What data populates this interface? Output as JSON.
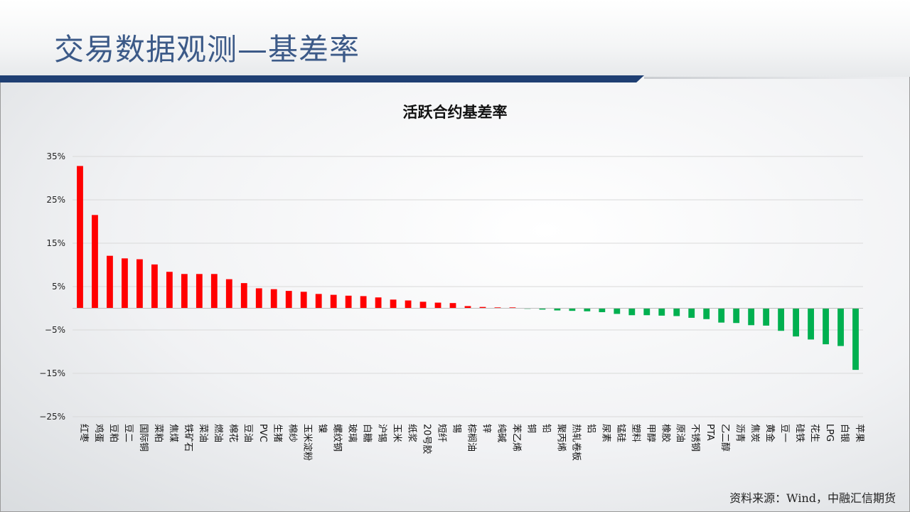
{
  "page": {
    "title": "交易数据观测—基差率",
    "source": "资料来源：Wind，中融汇信期货"
  },
  "colors": {
    "positive": "#ff0000",
    "negative": "#00b050",
    "grid": "#d9d9d9",
    "title_bar": "#1f3f73"
  },
  "chart_data": {
    "type": "bar",
    "title": "活跃合约基差率",
    "xlabel": "",
    "ylabel": "",
    "ylim": [
      -25,
      35
    ],
    "yticks": [
      -25,
      -15,
      -5,
      5,
      15,
      25,
      35
    ],
    "ytick_labels": [
      "−25%",
      "−15%",
      "−5%",
      "5%",
      "15%",
      "25%",
      "35%"
    ],
    "grid": true,
    "legend": "none",
    "categories": [
      "红枣",
      "鸡蛋",
      "豆粕",
      "豆二",
      "国际铜",
      "菜粕",
      "焦煤",
      "铁矿石",
      "菜油",
      "燃油",
      "棉花",
      "豆油",
      "PVC",
      "生猪",
      "棉纱",
      "玉米淀粉",
      "镍",
      "螺纹钢",
      "玻璃",
      "白糖",
      "沪锡",
      "玉米",
      "纸浆",
      "20号胶",
      "短纤",
      "锡",
      "棕榈油",
      "锌",
      "纯碱",
      "苯乙烯",
      "铜",
      "铅",
      "聚丙烯",
      "热轧卷板",
      "铝",
      "尿素",
      "锰硅",
      "塑料",
      "甲醇",
      "橡胶",
      "原油",
      "不锈钢",
      "PTA",
      "乙二醇",
      "沥青",
      "焦炭",
      "黄金",
      "豆一",
      "硅铁",
      "花生",
      "LPG",
      "白银",
      "苹果"
    ],
    "values": [
      32.8,
      21.5,
      12.1,
      11.5,
      11.3,
      10.1,
      8.4,
      7.9,
      7.9,
      7.9,
      6.7,
      5.8,
      4.6,
      4.4,
      4.0,
      3.8,
      3.3,
      3.1,
      2.9,
      2.8,
      2.5,
      2.0,
      1.8,
      1.5,
      1.3,
      1.2,
      0.5,
      0.3,
      0.2,
      0.2,
      -0.1,
      -0.3,
      -0.5,
      -0.6,
      -0.7,
      -0.9,
      -1.3,
      -1.6,
      -1.6,
      -1.7,
      -1.8,
      -2.2,
      -2.5,
      -3.3,
      -3.4,
      -3.9,
      -4.0,
      -5.2,
      -6.5,
      -7.2,
      -8.3,
      -8.7,
      -14.2
    ]
  }
}
